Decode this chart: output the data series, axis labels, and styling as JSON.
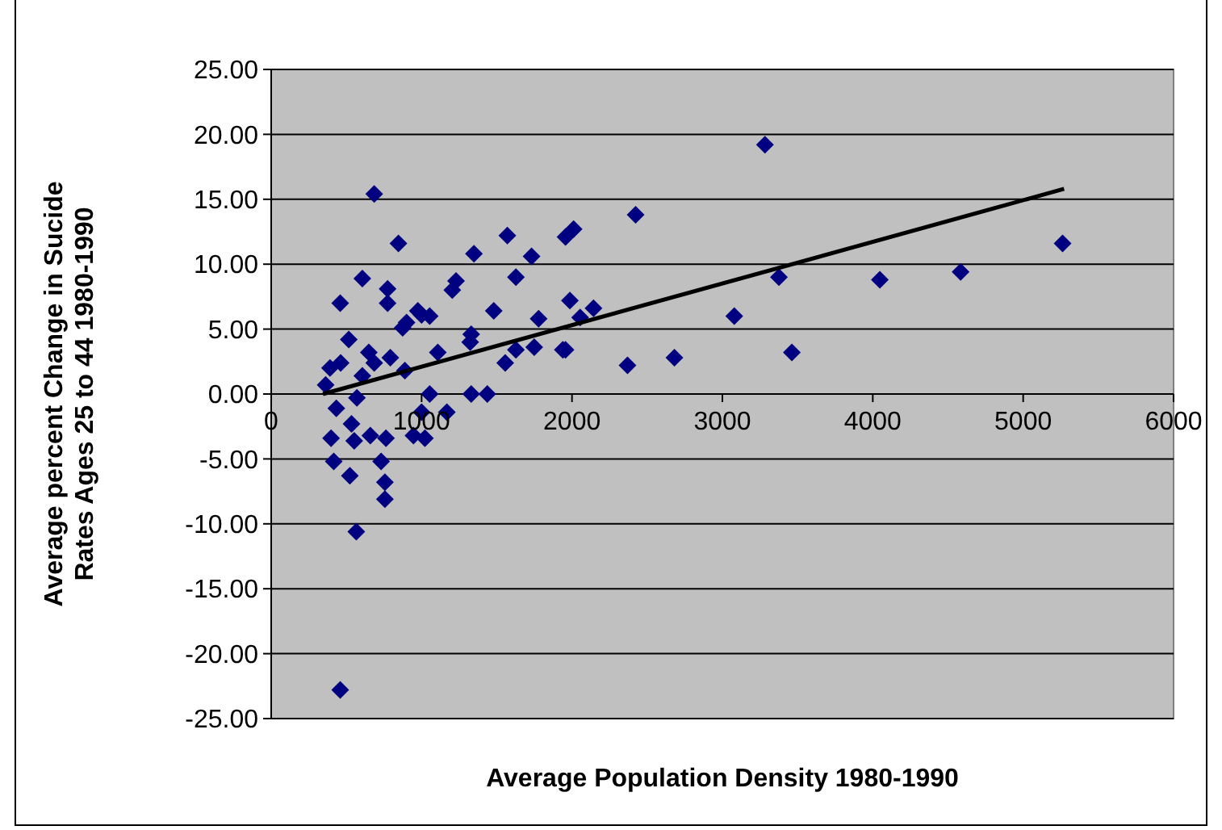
{
  "chart_data": {
    "type": "scatter",
    "xlabel": "Average Population Density 1980-1990",
    "ylabel": "Average percent Change in Sucide\nRates Ages 25 to 44 1980-1990",
    "xlim": [
      0,
      6000
    ],
    "xticks": [
      0,
      1000,
      2000,
      3000,
      4000,
      5000,
      6000
    ],
    "ylim": [
      -25,
      25
    ],
    "yticks": [
      {
        "value": -25,
        "label": "-25.00"
      },
      {
        "value": -20,
        "label": "-20.00"
      },
      {
        "value": -15,
        "label": "-15.00"
      },
      {
        "value": -10,
        "label": "-10.00"
      },
      {
        "value": -5,
        "label": "-5.00"
      },
      {
        "value": 0,
        "label": "0.00"
      },
      {
        "value": 5,
        "label": "5.00"
      },
      {
        "value": 10,
        "label": "10.00"
      },
      {
        "value": 15,
        "label": "15.00"
      },
      {
        "value": 20,
        "label": "20.00"
      },
      {
        "value": 25,
        "label": "25.00"
      }
    ],
    "grid": "y",
    "marker": "diamond",
    "series": [
      {
        "type": "scatter",
        "color": "#000080",
        "x": [
          685,
          846,
          1348,
          1570,
          1731,
          1957,
          2011,
          606,
          459,
          774,
          774,
          1229,
          1204,
          1627,
          975,
          1000,
          1054,
          900,
          874,
          1480,
          1778,
          1986,
          2054,
          2143,
          1957,
          516,
          391,
          462,
          362,
          649,
          685,
          792,
          606,
          889,
          1108,
          1323,
          1330,
          1556,
          1627,
          1749,
          1939,
          1054,
          1330,
          1437,
          570,
          433,
          1000,
          1168,
          534,
          398,
          552,
          659,
          763,
          946,
          1022,
          416,
          731,
          523,
          756,
          756,
          566,
          459,
          3283,
          2423,
          3376,
          4047,
          4584,
          5262,
          3079,
          2369,
          2681,
          3462
        ],
        "values": [
          15.4,
          11.6,
          10.8,
          12.2,
          10.6,
          12.1,
          12.7,
          8.9,
          7.0,
          8.1,
          7.0,
          8.7,
          8.0,
          9.0,
          6.4,
          6.1,
          6.0,
          5.5,
          5.1,
          6.4,
          5.8,
          7.2,
          5.9,
          6.6,
          3.4,
          4.2,
          2.0,
          2.4,
          0.7,
          3.2,
          2.4,
          2.8,
          1.4,
          1.8,
          3.2,
          4.0,
          4.6,
          2.4,
          3.4,
          3.6,
          3.4,
          0,
          0,
          0,
          -0.3,
          -1.1,
          -1.4,
          -1.4,
          -2.3,
          -3.4,
          -3.6,
          -3.2,
          -3.4,
          -3.2,
          -3.4,
          -5.2,
          -5.2,
          -6.3,
          -6.8,
          -8.1,
          -10.6,
          -22.8,
          19.2,
          13.8,
          9.0,
          8.8,
          9.4,
          11.6,
          6.0,
          2.2,
          2.8,
          3.2
        ]
      },
      {
        "type": "line",
        "color": "#000000",
        "marker": "none",
        "line_style": "solid",
        "x": [
          344,
          5272
        ],
        "values": [
          0,
          15.8
        ]
      }
    ]
  }
}
